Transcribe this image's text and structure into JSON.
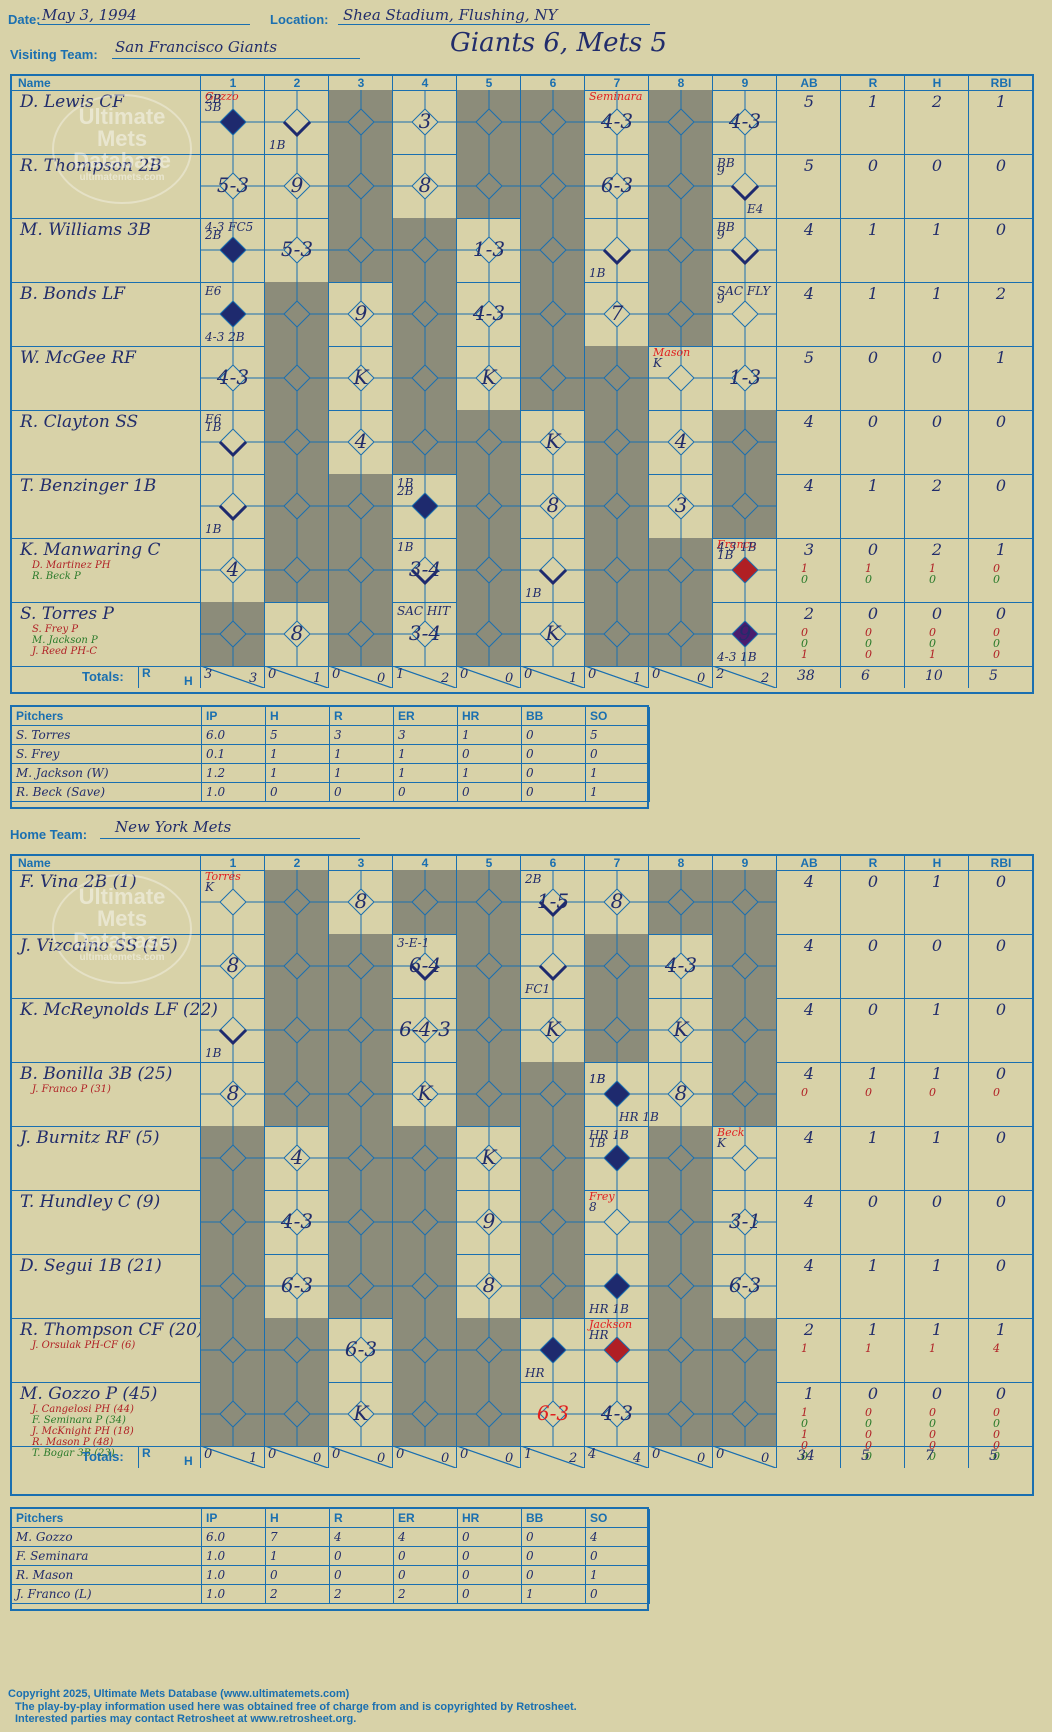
{
  "header": {
    "date_label": "Date:",
    "date": "May 3, 1994",
    "location_label": "Location:",
    "location": "Shea Stadium, Flushing, NY",
    "visiting_label": "Visiting Team:",
    "visiting_team": "San Francisco Giants",
    "home_label": "Home Team:",
    "home_team": "New York Mets",
    "result": "Giants 6, Mets 5"
  },
  "columns": {
    "name": "Name",
    "innings": [
      "1",
      "2",
      "3",
      "4",
      "5",
      "6",
      "7",
      "8",
      "9"
    ],
    "ab": "AB",
    "r": "R",
    "h": "H",
    "rbi": "RBI",
    "totals": "Totals:",
    "tr": "R",
    "th": "H"
  },
  "colors": {
    "background": "#d8d2a8",
    "grid": "#1a6fb0",
    "shade": "#8c8c7a",
    "run_blue": "#1e2a6e",
    "run_red": "#b01f24",
    "run_purple": "#4a1c6e",
    "text": "#222d6b"
  },
  "visitors": {
    "batters": [
      {
        "name": "D. Lewis CF",
        "subs": [],
        "ab": "5",
        "r": "1",
        "h": "2",
        "rbi": "1",
        "subs_stats": []
      },
      {
        "name": "R. Thompson 2B",
        "subs": [],
        "ab": "5",
        "r": "0",
        "h": "0",
        "rbi": "0",
        "subs_stats": []
      },
      {
        "name": "M. Williams 3B",
        "subs": [],
        "ab": "4",
        "r": "1",
        "h": "1",
        "rbi": "0",
        "subs_stats": []
      },
      {
        "name": "B. Bonds LF",
        "subs": [],
        "ab": "4",
        "r": "1",
        "h": "1",
        "rbi": "2",
        "subs_stats": []
      },
      {
        "name": "W. McGee RF",
        "subs": [],
        "ab": "5",
        "r": "0",
        "h": "0",
        "rbi": "1",
        "subs_stats": []
      },
      {
        "name": "R. Clayton SS",
        "subs": [],
        "ab": "4",
        "r": "0",
        "h": "0",
        "rbi": "0",
        "subs_stats": []
      },
      {
        "name": "T. Benzinger 1B",
        "subs": [],
        "ab": "4",
        "r": "1",
        "h": "2",
        "rbi": "0",
        "subs_stats": []
      },
      {
        "name": "K. Manwaring C",
        "subs": [
          "D. Martinez PH",
          "R. Beck P"
        ],
        "ab": "3",
        "r": "0",
        "h": "2",
        "rbi": "1",
        "subs_stats": [
          [
            "1",
            "1",
            "1",
            "0"
          ],
          [
            "0",
            "0",
            "0",
            "0"
          ]
        ]
      },
      {
        "name": "S. Torres P",
        "subs": [
          "S. Frey P",
          "M. Jackson P",
          "J. Reed PH-C"
        ],
        "ab": "2",
        "r": "0",
        "h": "0",
        "rbi": "0",
        "subs_stats": [
          [
            "0",
            "0",
            "0",
            "0"
          ],
          [
            "0",
            "0",
            "0",
            "0"
          ],
          [
            "1",
            "0",
            "1",
            "0"
          ]
        ]
      }
    ],
    "totals": {
      "innings": [
        [
          "3",
          "3"
        ],
        [
          "0",
          "1"
        ],
        [
          "0",
          "0"
        ],
        [
          "1",
          "2"
        ],
        [
          "0",
          "0"
        ],
        [
          "0",
          "1"
        ],
        [
          "0",
          "1"
        ],
        [
          "0",
          "0"
        ],
        [
          "2",
          "2"
        ]
      ],
      "ab": "38",
      "r": "6",
      "h": "10",
      "rbi": "5"
    },
    "plays": [
      [
        [
          "Gozzo;3B;2B",
          "run-blue"
        ],
        [
          "1B",
          "path"
        ],
        [
          "",
          "shade"
        ],
        [
          "3",
          ""
        ],
        [
          "",
          "shade"
        ],
        [
          "",
          "shade"
        ],
        [
          "Seminara;4-3",
          ""
        ],
        [
          "",
          "shade"
        ],
        [
          "4-3",
          ""
        ]
      ],
      [
        [
          "5-3",
          ""
        ],
        [
          "9",
          ""
        ],
        [
          "",
          "shade"
        ],
        [
          "8",
          ""
        ],
        [
          "",
          "shade"
        ],
        [
          "",
          "shade"
        ],
        [
          "6-3",
          ""
        ],
        [
          "",
          "shade"
        ],
        [
          "9;BB;E4",
          "path"
        ]
      ],
      [
        [
          "2B;4-3 FC5",
          "run-blue"
        ],
        [
          "5-3",
          ""
        ],
        [
          "",
          "shade"
        ],
        [
          "",
          "shade"
        ],
        [
          "1-3",
          ""
        ],
        [
          "",
          "shade"
        ],
        [
          "1B",
          "path"
        ],
        [
          "",
          "shade"
        ],
        [
          "9;BB",
          "path"
        ]
      ],
      [
        [
          "4-3 2B;E6",
          "run-blue"
        ],
        [
          "",
          "shade"
        ],
        [
          "9",
          ""
        ],
        [
          "",
          "shade"
        ],
        [
          "4-3",
          ""
        ],
        [
          "",
          "shade"
        ],
        [
          "7",
          ""
        ],
        [
          "",
          "shade"
        ],
        [
          "9;SAC FLY",
          ""
        ]
      ],
      [
        [
          "4-3",
          ""
        ],
        [
          "",
          "shade"
        ],
        [
          "K",
          ""
        ],
        [
          "",
          "shade"
        ],
        [
          "K",
          ""
        ],
        [
          "",
          "shade"
        ],
        [
          "",
          "shade"
        ],
        [
          "Mason;K",
          ""
        ],
        [
          "1-3",
          ""
        ]
      ],
      [
        [
          "1B;E6",
          "path"
        ],
        [
          "",
          "shade"
        ],
        [
          "4",
          ""
        ],
        [
          "",
          "shade"
        ],
        [
          "",
          "shade"
        ],
        [
          "K",
          ""
        ],
        [
          "",
          "shade"
        ],
        [
          "4",
          ""
        ],
        [
          "",
          "shade"
        ]
      ],
      [
        [
          "1B",
          "path"
        ],
        [
          "",
          "shade"
        ],
        [
          "",
          "shade"
        ],
        [
          "2B;1B",
          "run-blue"
        ],
        [
          "",
          "shade"
        ],
        [
          "8",
          ""
        ],
        [
          "",
          "shade"
        ],
        [
          "3",
          ""
        ],
        [
          "",
          "shade"
        ]
      ],
      [
        [
          "4",
          ""
        ],
        [
          "",
          "shade"
        ],
        [
          "",
          "shade"
        ],
        [
          "3-4;1B",
          "path"
        ],
        [
          "",
          "shade"
        ],
        [
          "1B",
          "path"
        ],
        [
          "",
          "shade"
        ],
        [
          "",
          "shade"
        ],
        [
          "Franco;1B;4-3 1B",
          "run-red"
        ]
      ],
      [
        [
          "",
          "shade"
        ],
        [
          "8",
          ""
        ],
        [
          "",
          "shade"
        ],
        [
          "3-4;SAC HIT",
          ""
        ],
        [
          "",
          "shade"
        ],
        [
          "K",
          ""
        ],
        [
          "",
          "shade"
        ],
        [
          "",
          "shade"
        ],
        [
          "4-3 1B;9",
          "run-purple"
        ]
      ]
    ]
  },
  "visitor_pitchers": {
    "headers": [
      "Pitchers",
      "IP",
      "H",
      "R",
      "ER",
      "HR",
      "BB",
      "SO"
    ],
    "rows": [
      [
        "S. Torres",
        "6.0",
        "5",
        "3",
        "3",
        "1",
        "0",
        "5"
      ],
      [
        "S. Frey",
        "0.1",
        "1",
        "1",
        "1",
        "0",
        "0",
        "0"
      ],
      [
        "M. Jackson (W)",
        "1.2",
        "1",
        "1",
        "1",
        "1",
        "0",
        "1"
      ],
      [
        "R. Beck (Save)",
        "1.0",
        "0",
        "0",
        "0",
        "0",
        "0",
        "1"
      ]
    ]
  },
  "home": {
    "batters": [
      {
        "name": "F. Vina 2B (1)",
        "subs": [],
        "ab": "4",
        "r": "0",
        "h": "1",
        "rbi": "0",
        "subs_stats": []
      },
      {
        "name": "J. Vizcaino SS (15)",
        "subs": [],
        "ab": "4",
        "r": "0",
        "h": "0",
        "rbi": "0",
        "subs_stats": []
      },
      {
        "name": "K. McReynolds LF (22)",
        "subs": [],
        "ab": "4",
        "r": "0",
        "h": "1",
        "rbi": "0",
        "subs_stats": []
      },
      {
        "name": "B. Bonilla 3B (25)",
        "subs": [
          "J. Franco P (31)"
        ],
        "ab": "4",
        "r": "1",
        "h": "1",
        "rbi": "0",
        "subs_stats": [
          [
            "0",
            "0",
            "0",
            "0"
          ]
        ]
      },
      {
        "name": "J. Burnitz RF (5)",
        "subs": [],
        "ab": "4",
        "r": "1",
        "h": "1",
        "rbi": "0",
        "subs_stats": []
      },
      {
        "name": "T. Hundley C (9)",
        "subs": [],
        "ab": "4",
        "r": "0",
        "h": "0",
        "rbi": "0",
        "subs_stats": []
      },
      {
        "name": "D. Segui 1B (21)",
        "subs": [],
        "ab": "4",
        "r": "1",
        "h": "1",
        "rbi": "0",
        "subs_stats": []
      },
      {
        "name": "R. Thompson CF (20)",
        "subs": [
          "J. Orsulak PH-CF (6)"
        ],
        "ab": "2",
        "r": "1",
        "h": "1",
        "rbi": "1",
        "subs_stats": [
          [
            "1",
            "1",
            "1",
            "4"
          ]
        ]
      },
      {
        "name": "M. Gozzo P (45)",
        "subs": [
          "J. Cangelosi PH (44)",
          "F. Seminara P (34)",
          "J. McKnight PH (18)",
          "R. Mason P (48)",
          "T. Bogar 3B (23)"
        ],
        "ab": "1",
        "r": "0",
        "h": "0",
        "rbi": "0",
        "subs_stats": [
          [
            "1",
            "0",
            "0",
            "0"
          ],
          [
            "0",
            "0",
            "0",
            "0"
          ],
          [
            "1",
            "0",
            "0",
            "0"
          ],
          [
            "0",
            "0",
            "0",
            "0"
          ],
          [
            "0",
            "0",
            "0",
            "0"
          ]
        ]
      }
    ],
    "totals": {
      "innings": [
        [
          "0",
          "1"
        ],
        [
          "0",
          "0"
        ],
        [
          "0",
          "0"
        ],
        [
          "0",
          "0"
        ],
        [
          "0",
          "0"
        ],
        [
          "1",
          "2"
        ],
        [
          "4",
          "4"
        ],
        [
          "0",
          "0"
        ],
        [
          "0",
          "0"
        ]
      ],
      "ab": "34",
      "r": "5",
      "h": "7",
      "rbi": "5"
    },
    "plays": [
      [
        [
          "Torres;K",
          ""
        ],
        [
          "",
          "shade"
        ],
        [
          "8",
          ""
        ],
        [
          "",
          "shade"
        ],
        [
          "",
          "shade"
        ],
        [
          "1-5;2B",
          "path"
        ],
        [
          "8",
          ""
        ],
        [
          "",
          "shade"
        ],
        [
          "",
          "shade"
        ]
      ],
      [
        [
          "8",
          ""
        ],
        [
          "",
          "shade"
        ],
        [
          "",
          "shade"
        ],
        [
          "6-4;3-E-1",
          "path"
        ],
        [
          "",
          "shade"
        ],
        [
          "FC1",
          "path"
        ],
        [
          "",
          "shade"
        ],
        [
          "4-3",
          ""
        ],
        [
          "",
          "shade"
        ]
      ],
      [
        [
          "1B",
          "path"
        ],
        [
          "",
          "shade"
        ],
        [
          "",
          "shade"
        ],
        [
          "6-4-3",
          ""
        ],
        [
          "",
          "shade"
        ],
        [
          "K",
          ""
        ],
        [
          "",
          "shade"
        ],
        [
          "K",
          ""
        ],
        [
          "",
          "shade"
        ]
      ],
      [
        [
          "8",
          ""
        ],
        [
          "",
          "shade"
        ],
        [
          "",
          "shade"
        ],
        [
          "K",
          ""
        ],
        [
          "",
          "shade"
        ],
        [
          "",
          "shade"
        ],
        [
          "1B;1B;HR 1B",
          "run-blue"
        ],
        [
          "8",
          ""
        ],
        [
          "",
          "shade"
        ]
      ],
      [
        [
          "",
          "shade"
        ],
        [
          "4",
          ""
        ],
        [
          "",
          "shade"
        ],
        [
          "",
          "shade"
        ],
        [
          "K",
          ""
        ],
        [
          "",
          "shade"
        ],
        [
          "1B;HR 1B",
          "run-blue"
        ],
        [
          "",
          "shade"
        ],
        [
          "Beck;K",
          ""
        ]
      ],
      [
        [
          "",
          "shade"
        ],
        [
          "4-3",
          ""
        ],
        [
          "",
          "shade"
        ],
        [
          "",
          "shade"
        ],
        [
          "9",
          ""
        ],
        [
          "",
          "shade"
        ],
        [
          "Frey;8",
          ""
        ],
        [
          "",
          "shade"
        ],
        [
          "3-1",
          ""
        ]
      ],
      [
        [
          "",
          "shade"
        ],
        [
          "6-3",
          ""
        ],
        [
          "",
          "shade"
        ],
        [
          "",
          "shade"
        ],
        [
          "8",
          ""
        ],
        [
          "",
          "shade"
        ],
        [
          "HR 1B",
          "run-blue"
        ],
        [
          "",
          "shade"
        ],
        [
          "6-3",
          ""
        ]
      ],
      [
        [
          "",
          "shade"
        ],
        [
          "",
          "shade"
        ],
        [
          "6-3",
          ""
        ],
        [
          "",
          "shade"
        ],
        [
          "",
          "shade"
        ],
        [
          "HR",
          "run-blue"
        ],
        [
          "Jackson;HR",
          "run-red"
        ],
        [
          "",
          "shade"
        ],
        [
          "",
          "shade"
        ]
      ],
      [
        [
          "",
          "shade"
        ],
        [
          "",
          "shade"
        ],
        [
          "K",
          ""
        ],
        [
          "",
          "shade"
        ],
        [
          "",
          "shade"
        ],
        [
          "6-3",
          "red-text"
        ],
        [
          "4-3",
          ""
        ],
        [
          "",
          "shade"
        ],
        [
          "",
          "shade"
        ]
      ]
    ]
  },
  "home_pitchers": {
    "headers": [
      "Pitchers",
      "IP",
      "H",
      "R",
      "ER",
      "HR",
      "BB",
      "SO"
    ],
    "rows": [
      [
        "M. Gozzo",
        "6.0",
        "7",
        "4",
        "4",
        "0",
        "0",
        "4"
      ],
      [
        "F. Seminara",
        "1.0",
        "1",
        "0",
        "0",
        "0",
        "0",
        "0"
      ],
      [
        "R. Mason",
        "1.0",
        "0",
        "0",
        "0",
        "0",
        "0",
        "1"
      ],
      [
        "J. Franco (L)",
        "1.0",
        "2",
        "2",
        "2",
        "0",
        "1",
        "0"
      ]
    ]
  },
  "watermark": {
    "line1": "Ultimate",
    "line2": "Mets",
    "line3": "Database",
    "line4": "ultimatemets.com"
  },
  "footer": {
    "line1": "Copyright 2025, Ultimate Mets Database (www.ultimatemets.com)",
    "line2": "The play-by-play information used here was obtained free of charge from and is copyrighted by Retrosheet.",
    "line3": "Interested parties may contact Retrosheet at www.retrosheet.org."
  }
}
